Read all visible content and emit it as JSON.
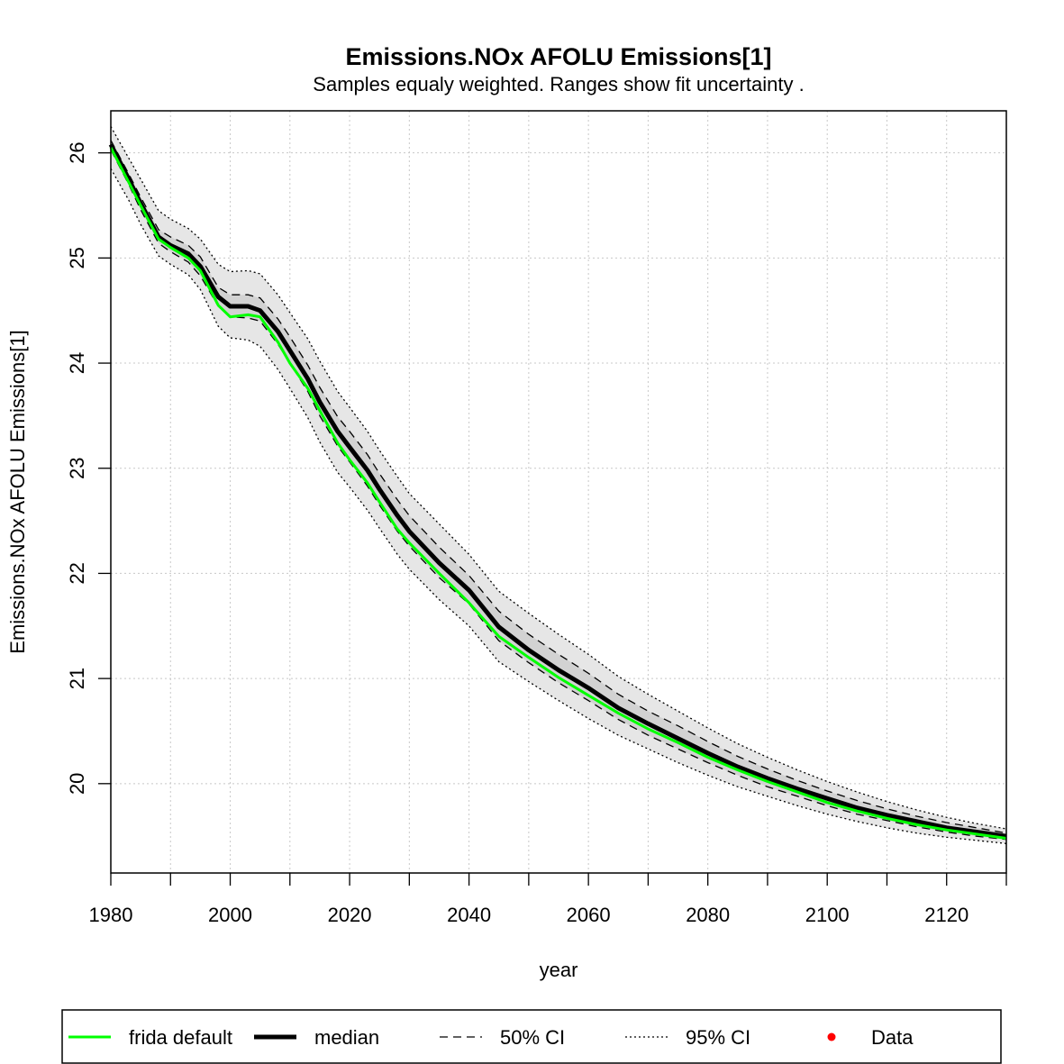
{
  "chart_data": {
    "type": "line",
    "title": "Emissions.NOx AFOLU Emissions[1]",
    "subtitle": "Samples equaly weighted. Ranges show  fit uncertainty .",
    "xlabel": "year",
    "ylabel": "Emissions.NOx AFOLU Emissions[1]",
    "xlim": [
      1980,
      2130
    ],
    "ylim": [
      19.15,
      26.4
    ],
    "x_ticks": [
      1980,
      2000,
      2020,
      2040,
      2060,
      2080,
      2100,
      2120
    ],
    "y_ticks": [
      20,
      21,
      22,
      23,
      24,
      25,
      26
    ],
    "grid": true,
    "legend_position": "bottom",
    "colors": {
      "frida_default": "#00ff00",
      "median": "#000000",
      "ci_fill": "#e6e6e6",
      "data": "#ff0000"
    },
    "x": [
      1980,
      1983,
      1985,
      1988,
      1990,
      1993,
      1995,
      1998,
      2000,
      2003,
      2005,
      2008,
      2010,
      2013,
      2015,
      2018,
      2020,
      2023,
      2025,
      2028,
      2030,
      2035,
      2040,
      2045,
      2050,
      2055,
      2060,
      2065,
      2070,
      2075,
      2080,
      2085,
      2090,
      2095,
      2100,
      2105,
      2110,
      2115,
      2120,
      2125,
      2130
    ],
    "series": [
      {
        "name": "frida default",
        "values": [
          26.05,
          25.72,
          25.5,
          25.18,
          25.1,
          25.0,
          24.88,
          24.55,
          24.44,
          24.46,
          24.44,
          24.2,
          24.0,
          23.76,
          23.55,
          23.24,
          23.08,
          22.86,
          22.68,
          22.42,
          22.29,
          22.0,
          21.72,
          21.4,
          21.2,
          21.01,
          20.84,
          20.67,
          20.52,
          20.39,
          20.25,
          20.13,
          20.02,
          19.92,
          19.82,
          19.74,
          19.67,
          19.61,
          19.56,
          19.52,
          19.48
        ]
      },
      {
        "name": "median",
        "values": [
          26.08,
          25.75,
          25.52,
          25.2,
          25.12,
          25.04,
          24.92,
          24.63,
          24.54,
          24.54,
          24.5,
          24.3,
          24.12,
          23.85,
          23.63,
          23.35,
          23.2,
          22.98,
          22.8,
          22.55,
          22.4,
          22.1,
          21.84,
          21.49,
          21.27,
          21.08,
          20.91,
          20.72,
          20.57,
          20.43,
          20.29,
          20.16,
          20.05,
          19.95,
          19.86,
          19.77,
          19.7,
          19.64,
          19.58,
          19.54,
          19.5
        ]
      },
      {
        "name": "50% CI",
        "values": [
          26.12,
          25.8,
          25.58,
          25.27,
          25.2,
          25.12,
          25.01,
          24.72,
          24.65,
          24.65,
          24.62,
          24.42,
          24.25,
          23.98,
          23.77,
          23.49,
          23.35,
          23.13,
          22.95,
          22.7,
          22.55,
          22.25,
          21.98,
          21.64,
          21.42,
          21.23,
          21.05,
          20.85,
          20.69,
          20.55,
          20.4,
          20.26,
          20.14,
          20.03,
          19.93,
          19.84,
          19.76,
          19.69,
          19.63,
          19.58,
          19.53
        ]
      },
      {
        "name": "50% CI",
        "values": [
          26.03,
          25.7,
          25.46,
          25.14,
          25.06,
          24.96,
          24.83,
          24.54,
          24.44,
          24.43,
          24.4,
          24.18,
          24.0,
          23.73,
          23.5,
          23.21,
          23.06,
          22.83,
          22.65,
          22.4,
          22.26,
          21.96,
          21.71,
          21.36,
          21.15,
          20.96,
          20.79,
          20.61,
          20.46,
          20.33,
          20.2,
          20.08,
          19.97,
          19.88,
          19.79,
          19.71,
          19.65,
          19.59,
          19.54,
          19.5,
          19.47
        ]
      },
      {
        "name": "95% CI",
        "values": [
          26.25,
          25.95,
          25.75,
          25.45,
          25.37,
          25.28,
          25.18,
          24.94,
          24.87,
          24.88,
          24.85,
          24.65,
          24.48,
          24.23,
          24.02,
          23.73,
          23.58,
          23.35,
          23.17,
          22.92,
          22.76,
          22.47,
          22.18,
          21.83,
          21.62,
          21.42,
          21.23,
          21.02,
          20.85,
          20.69,
          20.53,
          20.38,
          20.25,
          20.13,
          20.02,
          19.92,
          19.83,
          19.75,
          19.68,
          19.62,
          19.57
        ]
      },
      {
        "name": "95% CI",
        "values": [
          25.85,
          25.55,
          25.32,
          25.02,
          24.94,
          24.84,
          24.7,
          24.35,
          24.24,
          24.22,
          24.16,
          23.94,
          23.76,
          23.48,
          23.25,
          22.96,
          22.82,
          22.6,
          22.43,
          22.18,
          22.04,
          21.75,
          21.5,
          21.16,
          20.97,
          20.79,
          20.62,
          20.46,
          20.33,
          20.2,
          20.08,
          19.97,
          19.88,
          19.79,
          19.71,
          19.64,
          19.58,
          19.53,
          19.49,
          19.46,
          19.43
        ]
      }
    ],
    "legend": [
      {
        "label": "frida default",
        "style": "solid-green"
      },
      {
        "label": "median",
        "style": "solid-black-thick"
      },
      {
        "label": "50% CI",
        "style": "dashed"
      },
      {
        "label": "95% CI",
        "style": "dotted"
      },
      {
        "label": "Data",
        "style": "red-point"
      }
    ]
  }
}
